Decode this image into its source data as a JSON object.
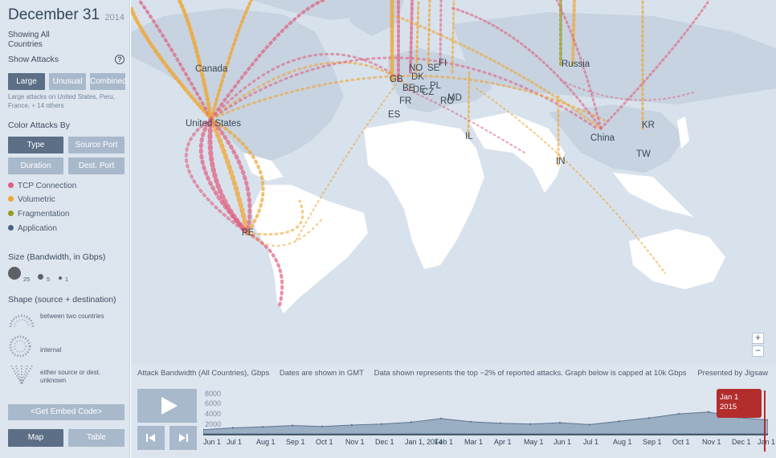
{
  "header": {
    "date": "December 31",
    "year": "2014",
    "showing": "Showing All Countries",
    "show_attacks": "Show Attacks"
  },
  "attack_types": {
    "buttons": [
      "Large",
      "Unusual",
      "Combined"
    ],
    "active": "Large",
    "description": "Large attacks on United States, Peru, France, + 14 others"
  },
  "color_by": {
    "title": "Color Attacks By",
    "buttons": [
      "Type",
      "Source Port",
      "Duration",
      "Dest. Port"
    ],
    "active": "Type"
  },
  "legend": [
    {
      "label": "TCP Connection",
      "color": "#e0607e"
    },
    {
      "label": "Volumetric",
      "color": "#f0a531"
    },
    {
      "label": "Fragmentation",
      "color": "#9a9a21"
    },
    {
      "label": "Application",
      "color": "#4a6283"
    }
  ],
  "size_legend": {
    "title": "Size (Bandwidth, in Gbps)",
    "labels": [
      "25",
      "5",
      "1"
    ]
  },
  "shape_legend": {
    "title": "Shape (source + destination)",
    "items": [
      "between two countries",
      "internal",
      "either source or dest. unknown"
    ]
  },
  "footer_buttons": {
    "embed": "<Get Embed Code>",
    "map": "Map",
    "table": "Table",
    "active": "Map"
  },
  "map": {
    "country_labels": [
      {
        "name": "Canada"
      },
      {
        "name": "United States"
      },
      {
        "name": "PE"
      },
      {
        "name": "GB"
      },
      {
        "name": "NO"
      },
      {
        "name": "DK"
      },
      {
        "name": "SE"
      },
      {
        "name": "FI"
      },
      {
        "name": "BE"
      },
      {
        "name": "DE"
      },
      {
        "name": "CZ"
      },
      {
        "name": "PL"
      },
      {
        "name": "FR"
      },
      {
        "name": "RO"
      },
      {
        "name": "MD"
      },
      {
        "name": "ES"
      },
      {
        "name": "IL"
      },
      {
        "name": "Russia"
      },
      {
        "name": "China"
      },
      {
        "name": "KR"
      },
      {
        "name": "TW"
      },
      {
        "name": "IN"
      }
    ],
    "zoom_in": "+",
    "zoom_out": "−"
  },
  "timeline": {
    "title": "Attack Bandwidth (All Countries), Gbps",
    "notes": [
      "Dates are shown in GMT",
      "Data shown represents the top ~2% of reported attacks. Graph below is capped at 10k Gbps"
    ],
    "presented_by": "Presented by Jigsaw",
    "marker": {
      "line1": "Jan 1",
      "line2": "2015"
    }
  },
  "chart_data": {
    "type": "area",
    "ylabel": "",
    "yticks": [
      "8000",
      "6000",
      "4000",
      "2000"
    ],
    "ylim": [
      0,
      10000
    ],
    "x": [
      "Jun 1",
      "Jul 1",
      "Aug 1",
      "Sep 1",
      "Oct 1",
      "Nov 1",
      "Dec 1",
      "Jan 1, 2014",
      "Feb 1",
      "Mar 1",
      "Apr 1",
      "May 1",
      "Jun 1",
      "Jul 1",
      "Aug 1",
      "Sep 1",
      "Oct 1",
      "Nov 1",
      "Dec 1",
      "Jan 1"
    ],
    "series": [
      {
        "values": [
          900,
          1300,
          1500,
          1800,
          1600,
          1900,
          2100,
          2500,
          3300,
          2600,
          2300,
          2100,
          2400,
          2000,
          2700,
          3400,
          4300,
          4700,
          3500,
          3000
        ]
      }
    ],
    "fill": "#9aaec4",
    "line": "#5f7691"
  }
}
